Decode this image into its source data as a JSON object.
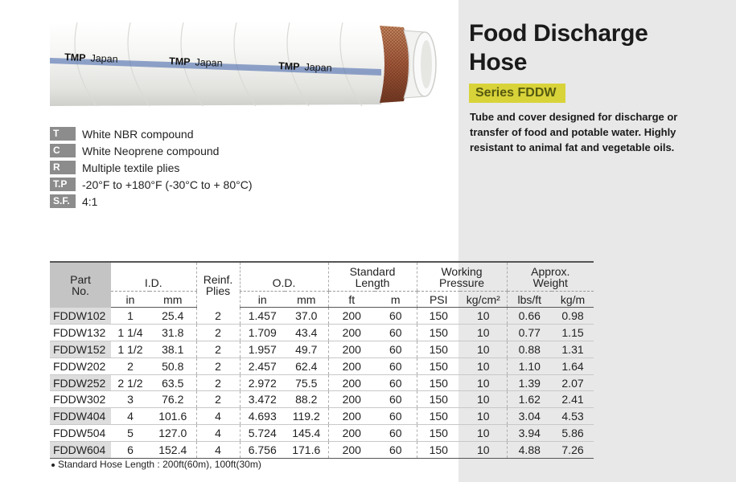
{
  "product": {
    "title_line1": "Food Discharge",
    "title_line2": "Hose",
    "series": "Series FDDW",
    "description": "Tube and cover designed for discharge or transfer of food and potable water. Highly resistant to animal fat and vegetable oils.",
    "brand_print": [
      "TMP",
      "Japan"
    ]
  },
  "specs": [
    {
      "code": "T",
      "text": "White NBR compound"
    },
    {
      "code": "C",
      "text": "White Neoprene compound"
    },
    {
      "code": "R",
      "text": "Multiple textile plies"
    },
    {
      "code": "T.P",
      "text": "-20°F to +180°F (-30°C to + 80°C)"
    },
    {
      "code": "S.F.",
      "text": "4:1"
    }
  ],
  "table": {
    "headers": {
      "part_no": [
        "Part",
        "No."
      ],
      "id": "I.D.",
      "reinf": [
        "Reinf.",
        "Plies"
      ],
      "od": "O.D.",
      "std_length": [
        "Standard",
        "Length"
      ],
      "working_pressure": [
        "Working",
        "Pressure"
      ],
      "weight": [
        "Approx.",
        "Weight"
      ]
    },
    "subheaders": {
      "id_in": "in",
      "id_mm": "mm",
      "od_in": "in",
      "od_mm": "mm",
      "len_ft": "ft",
      "len_m": "m",
      "wp_psi": "PSI",
      "wp_kg": "kg/cm²",
      "wt_lbs": "lbs/ft",
      "wt_kg": "kg/m"
    },
    "rows": [
      {
        "part": "FDDW102",
        "id_in": "1",
        "id_mm": "25.4",
        "plies": "2",
        "od_in": "1.457",
        "od_mm": "37.0",
        "len_ft": "200",
        "len_m": "60",
        "psi": "150",
        "kg_cm2": "10",
        "lbs_ft": "0.66",
        "kg_m": "0.98"
      },
      {
        "part": "FDDW132",
        "id_in": "1 1/4",
        "id_mm": "31.8",
        "plies": "2",
        "od_in": "1.709",
        "od_mm": "43.4",
        "len_ft": "200",
        "len_m": "60",
        "psi": "150",
        "kg_cm2": "10",
        "lbs_ft": "0.77",
        "kg_m": "1.15"
      },
      {
        "part": "FDDW152",
        "id_in": "1 1/2",
        "id_mm": "38.1",
        "plies": "2",
        "od_in": "1.957",
        "od_mm": "49.7",
        "len_ft": "200",
        "len_m": "60",
        "psi": "150",
        "kg_cm2": "10",
        "lbs_ft": "0.88",
        "kg_m": "1.31"
      },
      {
        "part": "FDDW202",
        "id_in": "2",
        "id_mm": "50.8",
        "plies": "2",
        "od_in": "2.457",
        "od_mm": "62.4",
        "len_ft": "200",
        "len_m": "60",
        "psi": "150",
        "kg_cm2": "10",
        "lbs_ft": "1.10",
        "kg_m": "1.64"
      },
      {
        "part": "FDDW252",
        "id_in": "2 1/2",
        "id_mm": "63.5",
        "plies": "2",
        "od_in": "2.972",
        "od_mm": "75.5",
        "len_ft": "200",
        "len_m": "60",
        "psi": "150",
        "kg_cm2": "10",
        "lbs_ft": "1.39",
        "kg_m": "2.07"
      },
      {
        "part": "FDDW302",
        "id_in": "3",
        "id_mm": "76.2",
        "plies": "2",
        "od_in": "3.472",
        "od_mm": "88.2",
        "len_ft": "200",
        "len_m": "60",
        "psi": "150",
        "kg_cm2": "10",
        "lbs_ft": "1.62",
        "kg_m": "2.41"
      },
      {
        "part": "FDDW404",
        "id_in": "4",
        "id_mm": "101.6",
        "plies": "4",
        "od_in": "4.693",
        "od_mm": "119.2",
        "len_ft": "200",
        "len_m": "60",
        "psi": "150",
        "kg_cm2": "10",
        "lbs_ft": "3.04",
        "kg_m": "4.53"
      },
      {
        "part": "FDDW504",
        "id_in": "5",
        "id_mm": "127.0",
        "plies": "4",
        "od_in": "5.724",
        "od_mm": "145.4",
        "len_ft": "200",
        "len_m": "60",
        "psi": "150",
        "kg_cm2": "10",
        "lbs_ft": "3.94",
        "kg_m": "5.86"
      },
      {
        "part": "FDDW604",
        "id_in": "6",
        "id_mm": "152.4",
        "plies": "4",
        "od_in": "6.756",
        "od_mm": "171.6",
        "len_ft": "200",
        "len_m": "60",
        "psi": "150",
        "kg_cm2": "10",
        "lbs_ft": "4.88",
        "kg_m": "7.26"
      }
    ]
  },
  "footnote": "Standard Hose Length : 200ft(60m), 100ft(30m)",
  "colors": {
    "series_badge_bg": "#d9d33a",
    "series_badge_text": "#555a10",
    "code_badge_bg": "#8c8c8c",
    "panel_bg": "#e8e8e8",
    "hose_cover": "#f4f4f2",
    "reinforcement": "#b06a45"
  }
}
